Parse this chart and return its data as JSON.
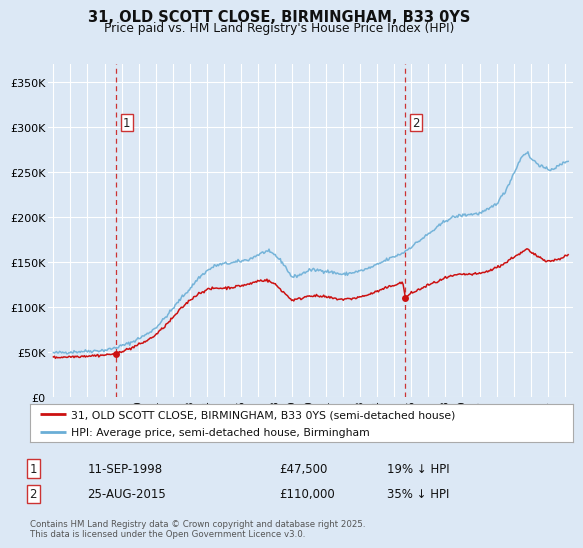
{
  "title": "31, OLD SCOTT CLOSE, BIRMINGHAM, B33 0YS",
  "subtitle": "Price paid vs. HM Land Registry's House Price Index (HPI)",
  "bg_color": "#dce8f5",
  "plot_bg_color": "#dce8f5",
  "hpi_color": "#6aaed6",
  "price_color": "#cc1111",
  "marker_color": "#cc1111",
  "sale1_date_num": 1998.69,
  "sale1_price": 47500,
  "sale2_date_num": 2015.65,
  "sale2_price": 110000,
  "vline_color": "#cc3333",
  "ylim": [
    0,
    370000
  ],
  "xlim_start": 1994.7,
  "xlim_end": 2025.5,
  "ytick_labels": [
    "£0",
    "£50K",
    "£100K",
    "£150K",
    "£200K",
    "£250K",
    "£300K",
    "£350K"
  ],
  "ytick_values": [
    0,
    50000,
    100000,
    150000,
    200000,
    250000,
    300000,
    350000
  ],
  "xtick_years": [
    1995,
    1996,
    1997,
    1998,
    1999,
    2000,
    2001,
    2002,
    2003,
    2004,
    2005,
    2006,
    2007,
    2008,
    2009,
    2010,
    2011,
    2012,
    2013,
    2014,
    2015,
    2016,
    2017,
    2018,
    2019,
    2020,
    2021,
    2022,
    2023,
    2024,
    2025
  ],
  "legend_line1": "31, OLD SCOTT CLOSE, BIRMINGHAM, B33 0YS (semi-detached house)",
  "legend_line2": "HPI: Average price, semi-detached house, Birmingham",
  "annotation1_label": "1",
  "annotation1_date": "11-SEP-1998",
  "annotation1_price": "£47,500",
  "annotation1_hpi": "19% ↓ HPI",
  "annotation2_label": "2",
  "annotation2_date": "25-AUG-2015",
  "annotation2_price": "£110,000",
  "annotation2_hpi": "35% ↓ HPI",
  "footer": "Contains HM Land Registry data © Crown copyright and database right 2025.\nThis data is licensed under the Open Government Licence v3.0."
}
